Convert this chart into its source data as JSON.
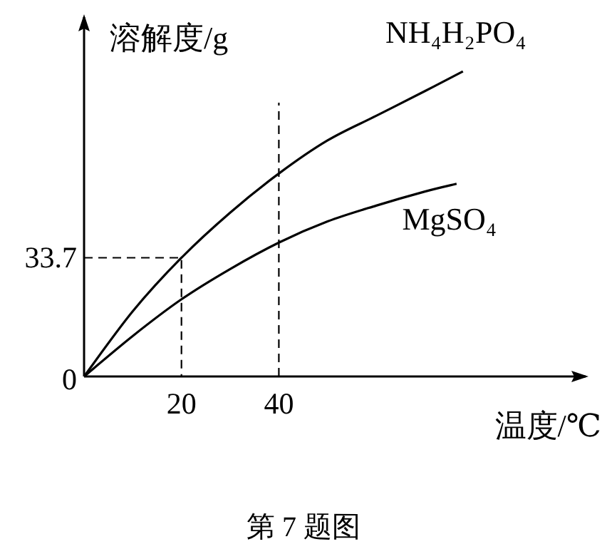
{
  "chart_data": {
    "type": "line",
    "xlabel": "温度/℃",
    "ylabel": "溶解度/g",
    "xlim": [
      0,
      103
    ],
    "ylim": [
      0,
      102
    ],
    "xticks": [
      20,
      40
    ],
    "yticks": [
      0,
      33.7
    ],
    "ref_lines": [
      {
        "axis": "x",
        "value": 40,
        "color": "#000000",
        "line_style": "dashed"
      }
    ],
    "series": [
      {
        "name": "NH₄H₂PO₄",
        "color": "#000000",
        "x": [
          0,
          10,
          20,
          30,
          40,
          50,
          60,
          70,
          77.8
        ],
        "values": [
          0,
          18.5,
          33.7,
          46.5,
          57.6,
          67,
          74,
          81,
          86.6
        ]
      },
      {
        "name": "MgSO₄",
        "color": "#000000",
        "x": [
          0,
          10,
          20,
          30,
          40,
          50,
          60,
          70,
          76.5
        ],
        "values": [
          0,
          11.5,
          21.9,
          30.5,
          38,
          44,
          48.5,
          52.5,
          54.7
        ]
      },
      {
        "color": "#000000",
        "line_style": "dashed",
        "x": [
          0,
          20,
          20
        ],
        "values": [
          33.7,
          33.7,
          0
        ]
      }
    ],
    "annotations": [
      "第 7 题图"
    ]
  }
}
